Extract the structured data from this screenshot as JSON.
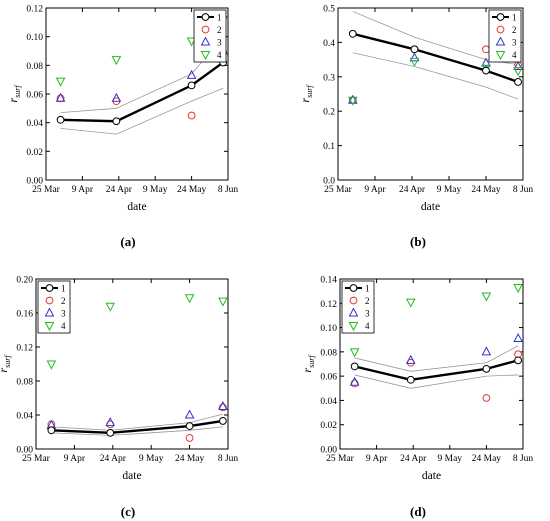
{
  "figure": {
    "panel_labels": [
      "(a)",
      "(b)",
      "(c)",
      "(d)"
    ]
  },
  "chart_data": [
    {
      "type": "scatter",
      "panel": "(a)",
      "xlabel": "date",
      "ylabel": "r",
      "ylabel_sub": "surf",
      "x_ticks": [
        "25 Mar",
        "9 Apr",
        "24 Apr",
        "9 May",
        "24 May",
        "8 Jun"
      ],
      "x_tick_dates": [
        "2017-03-25",
        "2017-04-09",
        "2017-04-24",
        "2017-05-09",
        "2017-05-24",
        "2017-06-08"
      ],
      "xlim": [
        "2017-03-25",
        "2017-06-08"
      ],
      "ylim": [
        0,
        0.12
      ],
      "y_ticks": [
        "0.00",
        "0.02",
        "0.04",
        "0.06",
        "0.08",
        "0.10",
        "0.12"
      ],
      "legend": [
        "1",
        "2",
        "3",
        "4"
      ],
      "legend_position": "top-right",
      "series": [
        {
          "name": "1",
          "marker": "circle",
          "color": "#000000",
          "line": true,
          "x": [
            "2017-03-31",
            "2017-04-23",
            "2017-05-24",
            "2017-06-06"
          ],
          "y": [
            0.042,
            0.041,
            0.066,
            0.082
          ]
        },
        {
          "name": "2",
          "marker": "circle",
          "color": "#e53935",
          "x": [
            "2017-03-31",
            "2017-04-23",
            "2017-05-24",
            "2017-06-06"
          ],
          "y": [
            0.057,
            0.055,
            0.045,
            0.089
          ]
        },
        {
          "name": "3",
          "marker": "triangle-up",
          "color": "#3333cc",
          "x": [
            "2017-03-31",
            "2017-04-23",
            "2017-05-24",
            "2017-06-06"
          ],
          "y": [
            0.057,
            0.057,
            0.073,
            0.09
          ]
        },
        {
          "name": "4",
          "marker": "triangle-down",
          "color": "#22bb22",
          "x": [
            "2017-03-31",
            "2017-04-23",
            "2017-05-24",
            "2017-06-06"
          ],
          "y": [
            0.069,
            0.084,
            0.097,
            0.112
          ]
        }
      ],
      "band_upper": {
        "x": [
          "2017-03-31",
          "2017-04-23",
          "2017-05-24",
          "2017-06-06"
        ],
        "y": [
          0.047,
          0.05,
          0.074,
          0.1
        ]
      },
      "band_lower": {
        "x": [
          "2017-03-31",
          "2017-04-23",
          "2017-05-24",
          "2017-06-06"
        ],
        "y": [
          0.036,
          0.032,
          0.055,
          0.064
        ]
      }
    },
    {
      "type": "scatter",
      "panel": "(b)",
      "xlabel": "date",
      "ylabel": "r",
      "ylabel_sub": "surf",
      "x_ticks": [
        "25 Mar",
        "9 Apr",
        "24 Apr",
        "9 May",
        "24 May",
        "8 Jun"
      ],
      "x_tick_dates": [
        "2017-03-25",
        "2017-04-09",
        "2017-04-24",
        "2017-05-09",
        "2017-05-24",
        "2017-06-08"
      ],
      "xlim": [
        "2017-03-25",
        "2017-06-08"
      ],
      "ylim": [
        0,
        0.5
      ],
      "y_ticks": [
        "0.0",
        "0.1",
        "0.2",
        "0.3",
        "0.4",
        "0.5"
      ],
      "legend": [
        "1",
        "2",
        "3",
        "4"
      ],
      "legend_position": "top-right",
      "series": [
        {
          "name": "1",
          "marker": "circle",
          "color": "#000000",
          "line": true,
          "x": [
            "2017-03-31",
            "2017-04-25",
            "2017-05-24",
            "2017-06-06"
          ],
          "y": [
            0.425,
            0.38,
            0.318,
            0.285
          ]
        },
        {
          "name": "2",
          "marker": "circle",
          "color": "#e53935",
          "x": [
            "2017-03-31",
            "2017-04-25",
            "2017-05-24",
            "2017-06-06"
          ],
          "y": [
            0.232,
            0.38,
            0.38,
            0.335
          ]
        },
        {
          "name": "3",
          "marker": "triangle-up",
          "color": "#3333cc",
          "x": [
            "2017-03-31",
            "2017-04-25",
            "2017-05-24",
            "2017-06-06"
          ],
          "y": [
            0.232,
            0.355,
            0.34,
            0.33
          ]
        },
        {
          "name": "4",
          "marker": "triangle-down",
          "color": "#22bb22",
          "x": [
            "2017-03-31",
            "2017-04-25",
            "2017-05-24",
            "2017-06-06"
          ],
          "y": [
            0.232,
            0.345,
            0.325,
            0.318
          ]
        }
      ],
      "band_upper": {
        "x": [
          "2017-03-31",
          "2017-04-25",
          "2017-05-24",
          "2017-06-06"
        ],
        "y": [
          0.49,
          0.415,
          0.35,
          0.335
        ]
      },
      "band_lower": {
        "x": [
          "2017-03-31",
          "2017-04-25",
          "2017-05-24",
          "2017-06-06"
        ],
        "y": [
          0.37,
          0.33,
          0.27,
          0.235
        ]
      }
    },
    {
      "type": "scatter",
      "panel": "(c)",
      "xlabel": "date",
      "ylabel": "r",
      "ylabel_sub": "surf",
      "x_ticks": [
        "25 Mar",
        "9 Apr",
        "24 Apr",
        "9 May",
        "24 May",
        "8 Jun"
      ],
      "x_tick_dates": [
        "2017-03-25",
        "2017-04-09",
        "2017-04-24",
        "2017-05-09",
        "2017-05-24",
        "2017-06-08"
      ],
      "xlim": [
        "2017-03-25",
        "2017-06-08"
      ],
      "ylim": [
        0,
        0.2
      ],
      "y_ticks": [
        "0.00",
        "0.04",
        "0.08",
        "0.12",
        "0.16",
        "0.20"
      ],
      "legend": [
        "1",
        "2",
        "3",
        "4"
      ],
      "legend_position": "top-left",
      "series": [
        {
          "name": "1",
          "marker": "circle",
          "color": "#000000",
          "line": true,
          "x": [
            "2017-03-31",
            "2017-04-23",
            "2017-05-24",
            "2017-06-06"
          ],
          "y": [
            0.022,
            0.019,
            0.027,
            0.033
          ]
        },
        {
          "name": "2",
          "marker": "circle",
          "color": "#e53935",
          "x": [
            "2017-03-31",
            "2017-04-23",
            "2017-05-24",
            "2017-06-06"
          ],
          "y": [
            0.029,
            0.029,
            0.013,
            0.049
          ]
        },
        {
          "name": "3",
          "marker": "triangle-up",
          "color": "#3333cc",
          "x": [
            "2017-03-31",
            "2017-04-23",
            "2017-05-24",
            "2017-06-06"
          ],
          "y": [
            0.028,
            0.031,
            0.04,
            0.05
          ]
        },
        {
          "name": "4",
          "marker": "triangle-down",
          "color": "#22bb22",
          "x": [
            "2017-03-31",
            "2017-04-23",
            "2017-05-24",
            "2017-06-06"
          ],
          "y": [
            0.1,
            0.168,
            0.178,
            0.174
          ]
        }
      ],
      "band_upper": {
        "x": [
          "2017-03-31",
          "2017-04-23",
          "2017-05-24",
          "2017-06-06"
        ],
        "y": [
          0.026,
          0.022,
          0.031,
          0.041
        ]
      },
      "band_lower": {
        "x": [
          "2017-03-31",
          "2017-04-23",
          "2017-05-24",
          "2017-06-06"
        ],
        "y": [
          0.019,
          0.016,
          0.022,
          0.026
        ]
      }
    },
    {
      "type": "scatter",
      "panel": "(d)",
      "xlabel": "date",
      "ylabel": "r",
      "ylabel_sub": "surf",
      "x_ticks": [
        "25 Mar",
        "9 Apr",
        "24 Apr",
        "9 May",
        "24 May",
        "8 Jun"
      ],
      "x_tick_dates": [
        "2017-03-25",
        "2017-04-09",
        "2017-04-24",
        "2017-05-09",
        "2017-05-24",
        "2017-06-08"
      ],
      "xlim": [
        "2017-03-25",
        "2017-06-08"
      ],
      "ylim": [
        0,
        0.14
      ],
      "y_ticks": [
        "0.00",
        "0.02",
        "0.04",
        "0.06",
        "0.08",
        "0.10",
        "0.12",
        "0.14"
      ],
      "legend": [
        "1",
        "2",
        "3",
        "4"
      ],
      "legend_position": "top-left",
      "series": [
        {
          "name": "1",
          "marker": "circle",
          "color": "#000000",
          "line": true,
          "x": [
            "2017-03-31",
            "2017-04-23",
            "2017-05-24",
            "2017-06-06"
          ],
          "y": [
            0.068,
            0.057,
            0.066,
            0.073
          ]
        },
        {
          "name": "2",
          "marker": "circle",
          "color": "#e53935",
          "x": [
            "2017-03-31",
            "2017-04-23",
            "2017-05-24",
            "2017-06-06"
          ],
          "y": [
            0.054,
            0.071,
            0.042,
            0.078
          ]
        },
        {
          "name": "3",
          "marker": "triangle-up",
          "color": "#3333cc",
          "x": [
            "2017-03-31",
            "2017-04-23",
            "2017-05-24",
            "2017-06-06"
          ],
          "y": [
            0.055,
            0.073,
            0.08,
            0.091
          ]
        },
        {
          "name": "4",
          "marker": "triangle-down",
          "color": "#22bb22",
          "x": [
            "2017-03-31",
            "2017-04-23",
            "2017-05-24",
            "2017-06-06"
          ],
          "y": [
            0.08,
            0.121,
            0.126,
            0.133
          ]
        }
      ],
      "band_upper": {
        "x": [
          "2017-03-31",
          "2017-04-23",
          "2017-05-24",
          "2017-06-06"
        ],
        "y": [
          0.075,
          0.064,
          0.071,
          0.085
        ]
      },
      "band_lower": {
        "x": [
          "2017-03-31",
          "2017-04-23",
          "2017-05-24",
          "2017-06-06"
        ],
        "y": [
          0.061,
          0.05,
          0.06,
          0.061
        ]
      }
    }
  ]
}
